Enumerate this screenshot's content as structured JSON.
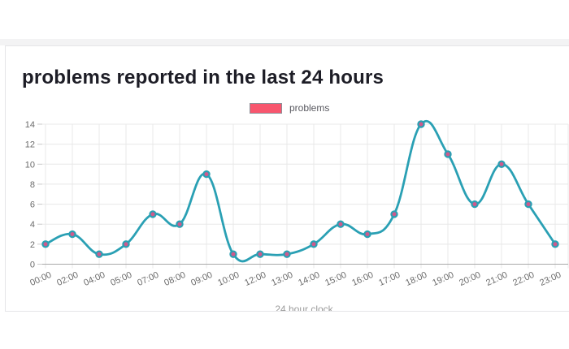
{
  "legend": {
    "swatch_color": "#f8566e",
    "swatch_border": "#8f8f98"
  },
  "chart_data": {
    "type": "line",
    "title": "problems reported in the last 24 hours",
    "categories": [
      "00:00",
      "02:00",
      "04:00",
      "05:00",
      "07:00",
      "08:00",
      "09:00",
      "10:00",
      "12:00",
      "13:00",
      "14:00",
      "15:00",
      "16:00",
      "17:00",
      "18:00",
      "19:00",
      "20:00",
      "21:00",
      "22:00",
      "23:00"
    ],
    "series": [
      {
        "name": "problems",
        "values": [
          2,
          3,
          1,
          2,
          5,
          4,
          9,
          1,
          1,
          1,
          2,
          4,
          3,
          5,
          14,
          11,
          6,
          10,
          6,
          2
        ]
      }
    ],
    "xlabel": "24 hour clock",
    "ylabel": "",
    "ylim": [
      0,
      14
    ],
    "yticks": [
      0,
      2,
      4,
      6,
      8,
      10,
      12,
      14
    ],
    "grid": true,
    "legend_position": "top",
    "line_color": "#2aa0b4",
    "point_fill": "#cf5a8c",
    "point_border": "#2aa0b4",
    "axis_text_color": "#6b6b6b",
    "axis_title_color": "#9b9b9b",
    "grid_color": "#e8e8e8",
    "baseline_color": "#a9a9a9"
  }
}
